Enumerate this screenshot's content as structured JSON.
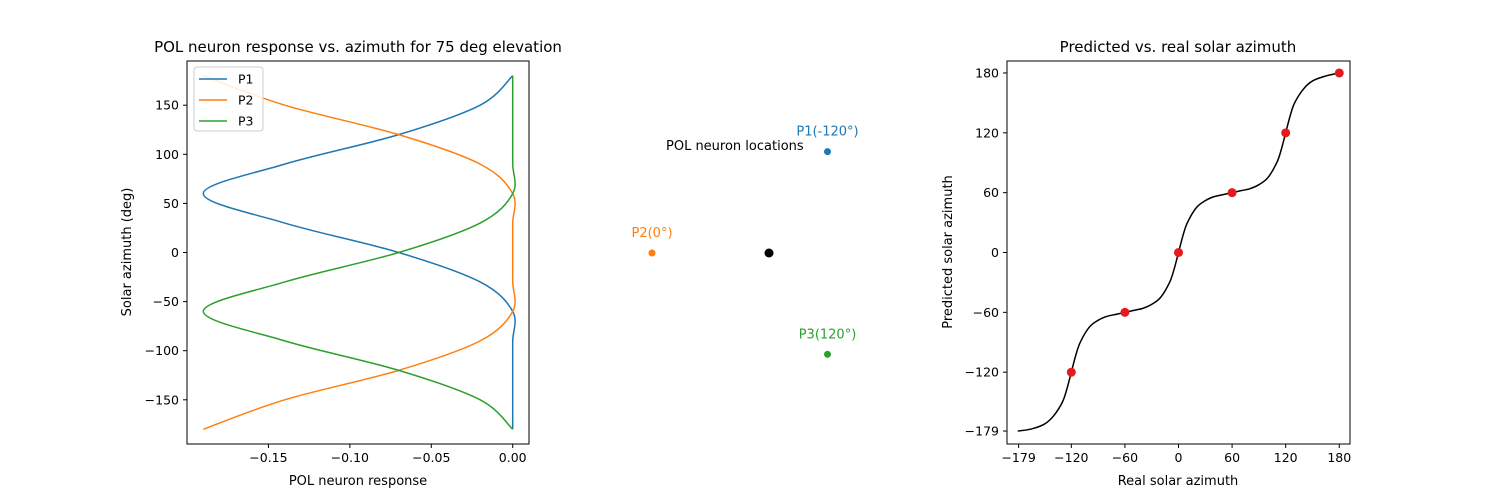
{
  "chart_data": [
    {
      "type": "line",
      "title": "POL neuron response vs. azimuth for 75 deg elevation",
      "xlabel": "POL neuron response",
      "ylabel": "Solar azimuth (deg)",
      "xlim": [
        -0.2,
        0.01
      ],
      "ylim": [
        -195,
        195
      ],
      "xticks": [
        -0.15,
        -0.1,
        -0.05,
        0.0
      ],
      "xtick_labels": [
        "−0.15",
        "−0.10",
        "−0.05",
        "0.00"
      ],
      "yticks": [
        -150,
        -100,
        -50,
        0,
        50,
        100,
        150
      ],
      "ytick_labels": [
        "−150",
        "−100",
        "−50",
        "0",
        "50",
        "100",
        "150"
      ],
      "legend_position": "top-left",
      "y": [
        -180,
        -150,
        -120,
        -90,
        -60,
        -30,
        0,
        30,
        60,
        90,
        120,
        150,
        180
      ],
      "series": [
        {
          "name": "P1",
          "color": "#1f77b4",
          "x": [
            0.0,
            0.0,
            0.0,
            0.0,
            0.0,
            -0.02,
            -0.07,
            -0.14,
            -0.19,
            -0.14,
            -0.07,
            -0.02,
            0.0
          ]
        },
        {
          "name": "P2",
          "color": "#ff7f0e",
          "x": [
            -0.19,
            -0.14,
            -0.07,
            -0.02,
            0.0,
            0.0,
            0.0,
            0.0,
            0.0,
            -0.02,
            -0.07,
            -0.14,
            -0.19
          ]
        },
        {
          "name": "P3",
          "color": "#2ca02c",
          "x": [
            0.0,
            -0.02,
            -0.07,
            -0.14,
            -0.19,
            -0.14,
            -0.07,
            -0.02,
            0.0,
            0.0,
            0.0,
            0.0,
            0.0
          ]
        }
      ]
    },
    {
      "type": "scatter",
      "title": "",
      "annotation": "POL neuron locations",
      "points": [
        {
          "label": "P1(-120°)",
          "color": "#1f77b4",
          "angle_deg": -120
        },
        {
          "label": "P2(0°)",
          "color": "#ff7f0e",
          "angle_deg": 0
        },
        {
          "label": "P3(120°)",
          "color": "#2ca02c",
          "angle_deg": 120
        }
      ],
      "center_color": "#000000"
    },
    {
      "type": "line",
      "title": "Predicted vs. real solar azimuth",
      "xlabel": "Real solar azimuth",
      "ylabel": "Predicted solar azimuth",
      "xlim": [
        -192,
        192
      ],
      "ylim": [
        -192,
        192
      ],
      "xticks": [
        -179,
        -120,
        -60,
        0,
        60,
        120,
        180
      ],
      "xtick_labels": [
        "−179",
        "−120",
        "−60",
        "0",
        "60",
        "120",
        "180"
      ],
      "yticks": [
        -179,
        -120,
        -60,
        0,
        60,
        120,
        180
      ],
      "ytick_labels": [
        "−179",
        "−120",
        "−60",
        "0",
        "60",
        "120",
        "180"
      ],
      "curve_color": "#000000",
      "curve_x": [
        -180,
        -165,
        -150,
        -140,
        -130,
        -125,
        -120,
        -115,
        -110,
        -100,
        -90,
        -80,
        -70,
        -60,
        -50,
        -40,
        -30,
        -20,
        -10,
        -5,
        0,
        5,
        10,
        20,
        30,
        40,
        50,
        60,
        70,
        80,
        90,
        100,
        110,
        115,
        120,
        125,
        130,
        140,
        150,
        165,
        180
      ],
      "curve_y": [
        -179,
        -177,
        -172,
        -164,
        -150,
        -137,
        -120,
        -103,
        -90,
        -75,
        -68,
        -64,
        -62,
        -60,
        -58,
        -56,
        -52,
        -45,
        -30,
        -17,
        0,
        17,
        30,
        45,
        52,
        56,
        58,
        60,
        62,
        64,
        68,
        75,
        90,
        103,
        120,
        137,
        150,
        164,
        172,
        177,
        180
      ],
      "point_color": "#e41a1c",
      "points_x": [
        -120,
        -60,
        0,
        60,
        120,
        180
      ],
      "points_y": [
        -120,
        -60,
        0,
        60,
        120,
        180
      ]
    }
  ]
}
